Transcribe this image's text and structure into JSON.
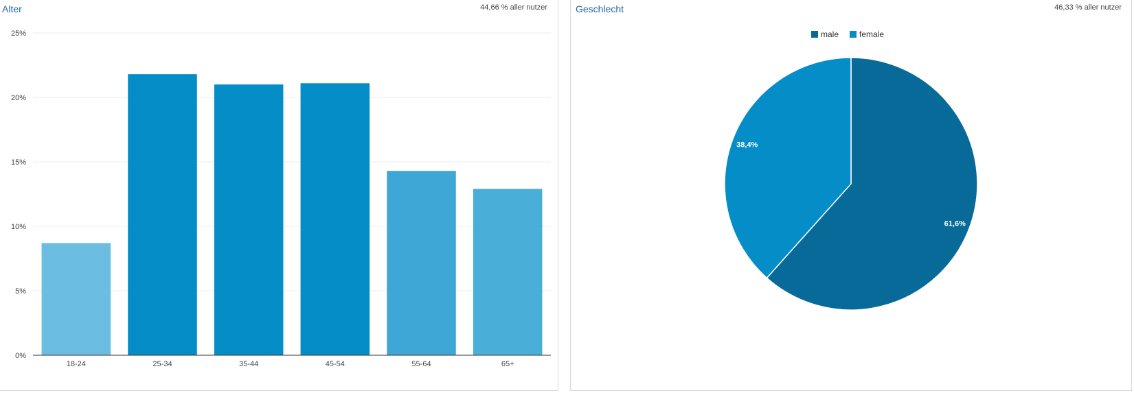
{
  "age_panel": {
    "title": "Alter",
    "meta": "44,66 % aller nutzer"
  },
  "gender_panel": {
    "title": "Geschlecht",
    "meta": "46,33 % aller nutzer"
  },
  "chart_data": [
    {
      "type": "bar",
      "categories": [
        "18-24",
        "25-34",
        "35-44",
        "45-54",
        "55-64",
        "65+"
      ],
      "values": [
        8.7,
        21.8,
        21.0,
        21.1,
        14.3,
        12.9
      ],
      "bar_colors": [
        "#6bbde2",
        "#058dc7",
        "#058dc7",
        "#058dc7",
        "#3fa7d6",
        "#49afd9"
      ],
      "ylim": [
        0,
        25
      ],
      "yticks": [
        0,
        5,
        10,
        15,
        20,
        25
      ],
      "ytick_labels": [
        "0%",
        "5%",
        "10%",
        "15%",
        "20%",
        "25%"
      ],
      "grid": true,
      "grid_color": "#ececec",
      "axis_color": "#333333"
    },
    {
      "type": "pie",
      "labels": [
        "male",
        "female"
      ],
      "values": [
        61.6,
        38.4
      ],
      "value_labels": [
        "61,6%",
        "38,4%"
      ],
      "colors": [
        "#076a99",
        "#058dc7"
      ],
      "legend_position": "top"
    }
  ]
}
